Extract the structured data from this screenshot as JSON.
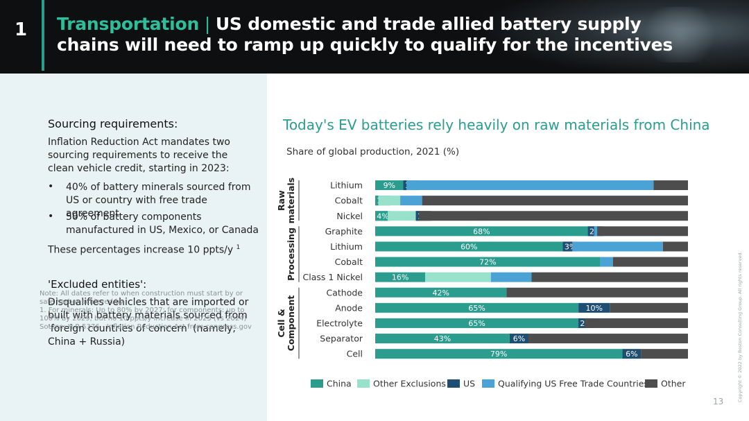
{
  "header": {
    "number": "1",
    "title_accent": "Transportation",
    "title_sep": " | ",
    "title_line1": "US domestic and trade allied battery supply",
    "title_line2": "chains will need to ramp up quickly to qualify for the incentives"
  },
  "left": {
    "heading1": "Sourcing requirements:",
    "intro": "Inflation Reduction Act mandates two sourcing requirements to receive the clean vehicle credit, starting in 2023:",
    "bullet1": "40% of battery minerals sourced from US or country with free trade agreement",
    "bullet2": "50% of battery components manufactured in US, Mexico, or Canada",
    "increase": "These percentages increase 10 ppts/y",
    "increase_sup": "1",
    "heading2": "'Excluded entities':",
    "excluded": "Disqualifies vehicles that are imported or built with battery materials sourced from 'foreign countries of concern' (namely, China + Russia)",
    "note1": "Note: All dates refer to when construction must start by or safe harbor achieved by",
    "note2": "1. For minerals: Up to 80% by 2027; for components: up to 100% by 2029, but no 10 ppts/y increase in 2025 (vs 2024)",
    "note3": "Source: H.R.5376 - Inflation Reduction Act from congress.gov"
  },
  "page": {
    "number": "13",
    "copyright": "Copyright © 2022 by Boston Consulting Group. All rights reserved."
  },
  "colors": {
    "China": "#2a9d8f",
    "Other Exclusions": "#98e2cc",
    "US": "#1f4e73",
    "Qualifying US Free Trade Countries": "#4aa3d4",
    "Other": "#4d4d4d"
  },
  "chart_data": {
    "type": "bar",
    "orientation": "horizontal",
    "stacked": true,
    "title": "Today's EV batteries rely heavily on raw materials from China",
    "subtitle": "Share of global production, 2021 (%)",
    "xlim": [
      0,
      100
    ],
    "groups": [
      {
        "label": "Raw materials",
        "categories": [
          "Lithium",
          "Cobalt",
          "Nickel"
        ]
      },
      {
        "label": "Processing",
        "categories": [
          "Graphite",
          "Lithium",
          "Cobalt",
          "Class 1 Nickel"
        ]
      },
      {
        "label": "Cell & Component",
        "categories": [
          "Cathode",
          "Anode",
          "Electrolyte",
          "Separator",
          "Cell"
        ]
      }
    ],
    "categories": [
      "Lithium",
      "Cobalt",
      "Nickel",
      "Graphite",
      "Lithium",
      "Cobalt",
      "Class 1 Nickel",
      "Cathode",
      "Anode",
      "Electrolyte",
      "Separator",
      "Cell"
    ],
    "series": [
      {
        "name": "China",
        "values": [
          9,
          1,
          4,
          68,
          60,
          72,
          16,
          42,
          65,
          65,
          43,
          79
        ],
        "labels": [
          "9%",
          "1%",
          "4%",
          "68%",
          "60%",
          "72%",
          "16%",
          "42%",
          "65%",
          "65%",
          "43%",
          "79%"
        ]
      },
      {
        "name": "Other Exclusions",
        "values": [
          0,
          7,
          9,
          0,
          0,
          0,
          21,
          0,
          0,
          0,
          0,
          0
        ],
        "labels": [
          "",
          "",
          "",
          "",
          "",
          "",
          "",
          "",
          "",
          "",
          "",
          ""
        ]
      },
      {
        "name": "US",
        "values": [
          1,
          0,
          1,
          2,
          3,
          0,
          0,
          0,
          10,
          2,
          6,
          6
        ],
        "labels": [
          "1%",
          "",
          "1%",
          "2%",
          "3%",
          "",
          "",
          "",
          "10%",
          "2%",
          "6%",
          "6%"
        ]
      },
      {
        "name": "Qualifying US Free Trade Countries",
        "values": [
          79,
          7,
          0,
          1,
          29,
          4,
          13,
          0,
          0,
          0,
          0,
          0
        ],
        "labels": [
          "",
          "",
          "",
          "",
          "",
          "",
          "",
          "",
          "",
          "",
          "",
          ""
        ]
      },
      {
        "name": "Other",
        "values": [
          11,
          85,
          86,
          29,
          8,
          24,
          50,
          58,
          25,
          33,
          51,
          15
        ],
        "labels": [
          "",
          "",
          "",
          "",
          "",
          "",
          "",
          "",
          "",
          "",
          "",
          ""
        ]
      }
    ],
    "legend": {
      "position": "bottom",
      "entries": [
        "China",
        "Other Exclusions",
        "US",
        "Qualifying US Free Trade Countries",
        "Other"
      ]
    }
  }
}
